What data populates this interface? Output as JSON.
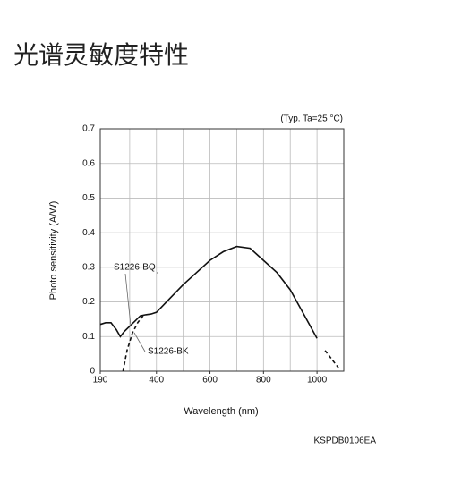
{
  "page_title": "光谱灵敏度特性",
  "figure_code": "KSPDB0106EA",
  "chart_data": {
    "type": "line",
    "annotation": "(Typ. Ta=25 °C)",
    "xlabel": "Wavelength (nm)",
    "ylabel": "Photo sensitivity (A/W)",
    "xlim": [
      190,
      1100
    ],
    "ylim": [
      0,
      0.7
    ],
    "xticks": [
      190,
      400,
      600,
      800,
      1000
    ],
    "xgrid": [
      300,
      400,
      500,
      600,
      700,
      800,
      900,
      1000,
      1100
    ],
    "yticks": [
      0,
      0.1,
      0.2,
      0.3,
      0.4,
      0.5,
      0.6,
      0.7
    ],
    "grid": true,
    "series": [
      {
        "name": "S1226-BQ",
        "color": "#111111",
        "dash": false,
        "x": [
          190,
          210,
          230,
          250,
          265,
          280,
          300,
          320,
          340,
          360,
          380,
          400,
          450,
          500,
          550,
          600,
          650,
          700,
          750,
          800,
          850,
          900,
          950,
          1000
        ],
        "values": [
          0.135,
          0.14,
          0.14,
          0.12,
          0.1,
          0.115,
          0.13,
          0.145,
          0.16,
          0.163,
          0.165,
          0.17,
          0.21,
          0.25,
          0.285,
          0.32,
          0.345,
          0.36,
          0.355,
          0.32,
          0.285,
          0.235,
          0.165,
          0.095
        ]
      },
      {
        "name": "S1226-BK",
        "color": "#111111",
        "dash": true,
        "x": [
          275,
          290,
          310,
          330,
          350,
          1000,
          1030,
          1060,
          1080
        ],
        "values": [
          0,
          0.06,
          0.11,
          0.14,
          0.16,
          null,
          0.06,
          0.03,
          0.01
        ]
      }
    ]
  }
}
